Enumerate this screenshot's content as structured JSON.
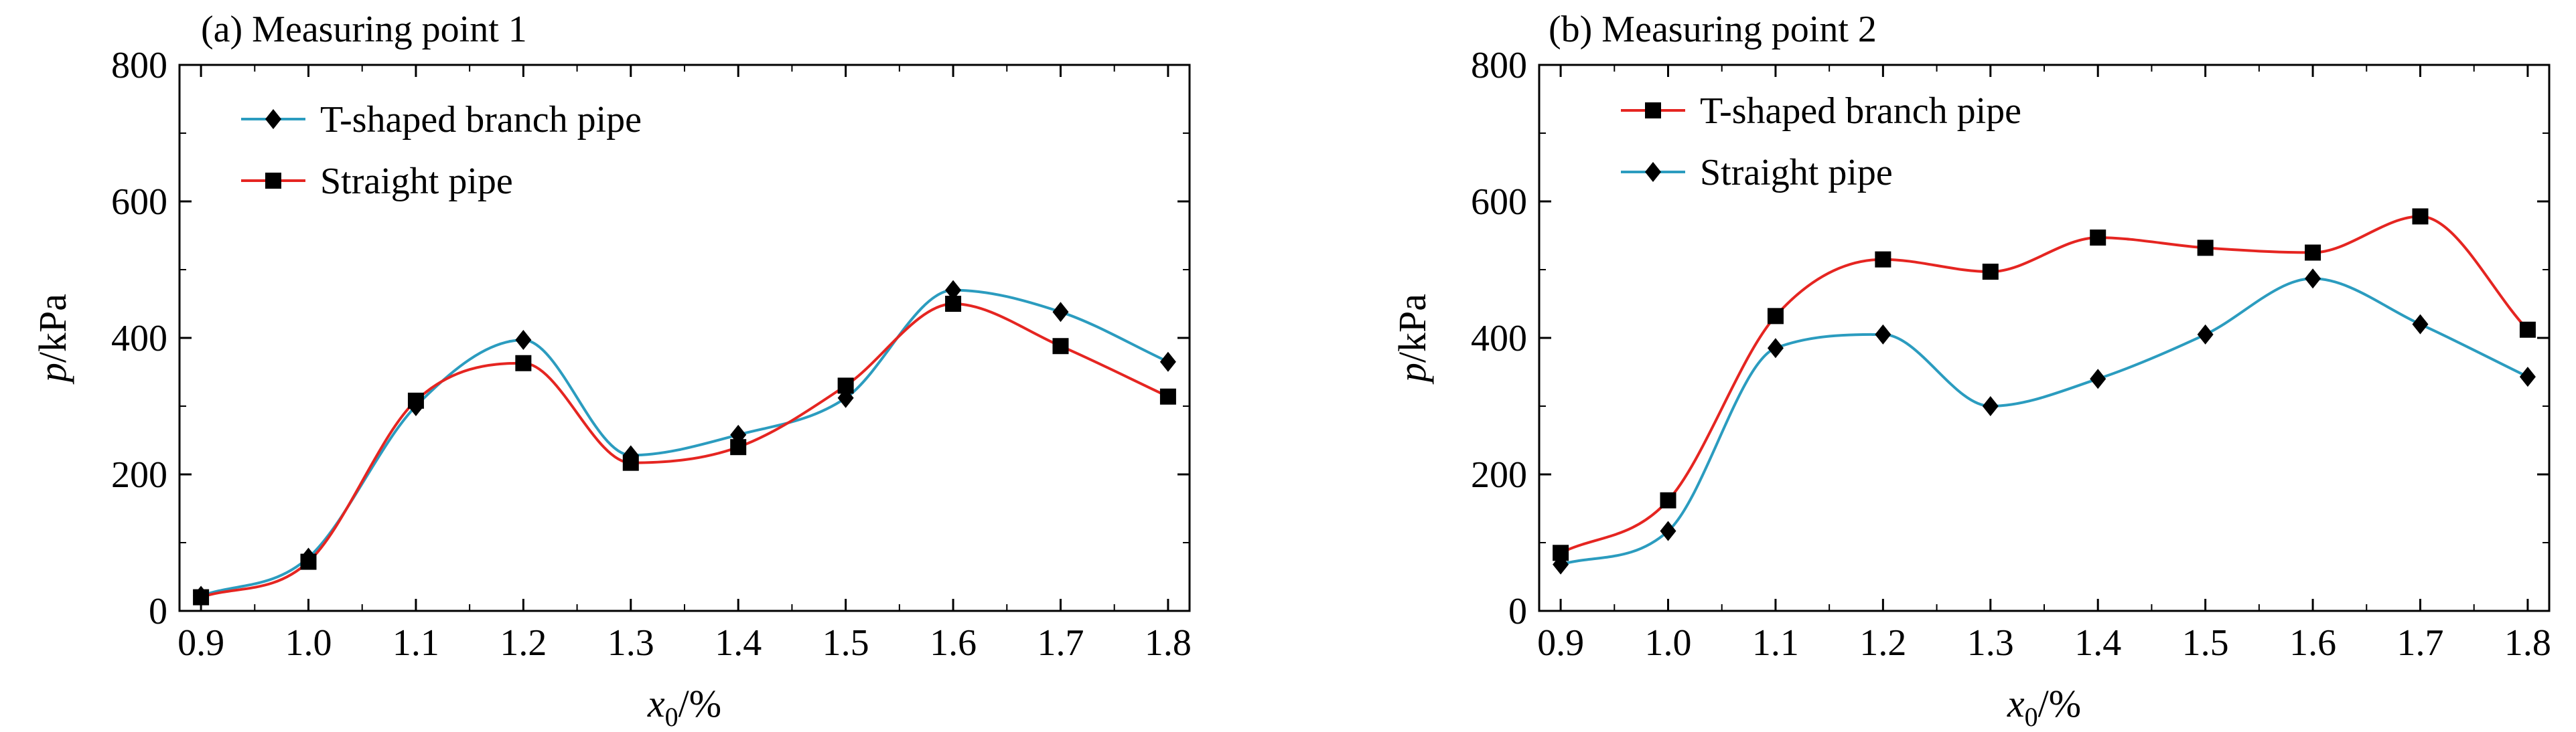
{
  "chart_data": [
    {
      "type": "line",
      "title": "(a) Measuring point 1",
      "ylabel_italic": "p",
      "ylabel_rest": "/kPa",
      "xlabel_base": "x",
      "xlabel_sub": "0",
      "xlabel_rest": "/%",
      "x": [
        0.9,
        1.0,
        1.1,
        1.2,
        1.3,
        1.4,
        1.5,
        1.6,
        1.7,
        1.8
      ],
      "xlim": [
        0.88,
        1.82
      ],
      "ylim": [
        0,
        800
      ],
      "xticks": [
        "0.9",
        "1.0",
        "1.1",
        "1.2",
        "1.3",
        "1.4",
        "1.5",
        "1.6",
        "1.7",
        "1.8"
      ],
      "yticks": [
        "0",
        "200",
        "400",
        "600",
        "800"
      ],
      "legend_position": "top-left",
      "series": [
        {
          "name": "T-shaped branch pipe",
          "marker": "diamond",
          "color": "#2b9cbf",
          "values": [
            22,
            78,
            300,
            397,
            228,
            258,
            312,
            470,
            438,
            365
          ]
        },
        {
          "name": "Straight pipe",
          "marker": "square",
          "color": "#e52521",
          "values": [
            20,
            72,
            308,
            363,
            217,
            240,
            330,
            450,
            388,
            314
          ]
        }
      ]
    },
    {
      "type": "line",
      "title": "(b) Measuring point 2",
      "ylabel_italic": "p",
      "ylabel_rest": "/kPa",
      "xlabel_base": "x",
      "xlabel_sub": "0",
      "xlabel_rest": "/%",
      "x": [
        0.9,
        1.0,
        1.1,
        1.2,
        1.3,
        1.4,
        1.5,
        1.6,
        1.7,
        1.8
      ],
      "xlim": [
        0.88,
        1.82
      ],
      "ylim": [
        0,
        800
      ],
      "xticks": [
        "0.9",
        "1.0",
        "1.1",
        "1.2",
        "1.3",
        "1.4",
        "1.5",
        "1.6",
        "1.7",
        "1.8"
      ],
      "yticks": [
        "0",
        "200",
        "400",
        "600",
        "800"
      ],
      "legend_position": "top-left",
      "series": [
        {
          "name": "T-shaped branch pipe",
          "marker": "square",
          "color": "#e52521",
          "values": [
            85,
            162,
            432,
            515,
            497,
            547,
            532,
            525,
            578,
            412
          ]
        },
        {
          "name": "Straight pipe",
          "marker": "diamond",
          "color": "#2b9cbf",
          "values": [
            68,
            117,
            385,
            405,
            300,
            340,
            405,
            487,
            420,
            343
          ]
        }
      ]
    }
  ]
}
